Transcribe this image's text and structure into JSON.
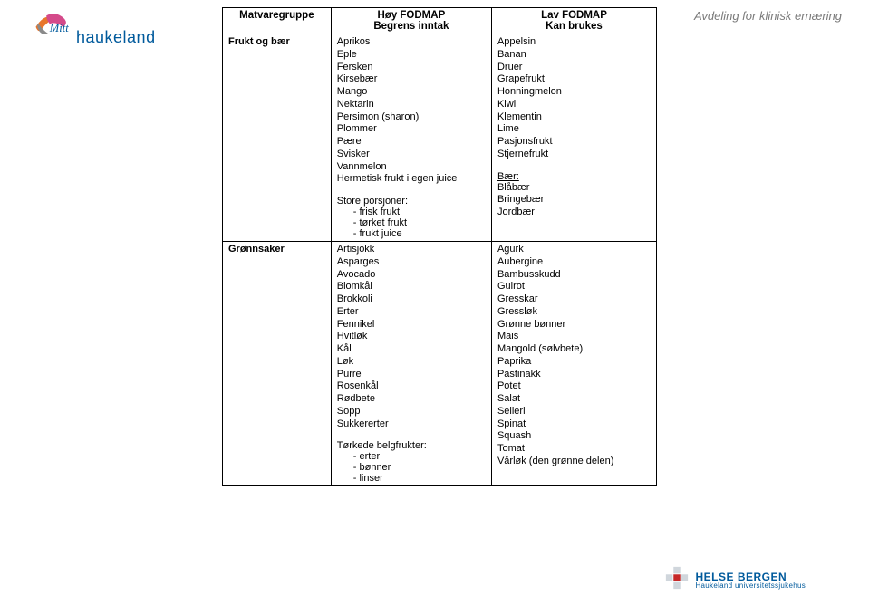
{
  "header": {
    "logo_text": "haukeland",
    "dept": "Avdeling for klinisk ernæring"
  },
  "table": {
    "headers": {
      "group": "Matvaregruppe",
      "high_l1": "Høy FODMAP",
      "high_l2": "Begrens inntak",
      "low_l1": "Lav FODMAP",
      "low_l2": "Kan brukes"
    },
    "rows": [
      {
        "group": "Frukt og bær",
        "high_plain": [
          "Aprikos",
          "Eple",
          "Fersken",
          "Kirsebær",
          "Mango",
          "Nektarin",
          "Persimon (sharon)",
          "Plommer",
          "Pære",
          "Svisker",
          "Vannmelon",
          "Hermetisk frukt i egen juice"
        ],
        "high_section_label": "Store porsjoner:",
        "high_sub": [
          "frisk frukt",
          "tørket frukt",
          "frukt juice"
        ],
        "low_plain": [
          "Appelsin",
          "Banan",
          "Druer",
          "Grapefrukt",
          "Honningmelon",
          "Kiwi",
          "Klementin",
          "Lime",
          "Pasjonsfrukt",
          "Stjernefrukt"
        ],
        "low_section_label": "Bær:",
        "low_after": [
          "Blåbær",
          "Bringebær",
          "Jordbær"
        ]
      },
      {
        "group": "Grønnsaker",
        "high_plain": [
          "Artisjokk",
          "Asparges",
          "Avocado",
          "Blomkål",
          "Brokkoli",
          "Erter",
          "Fennikel",
          "Hvitløk",
          "Kål",
          "Løk",
          "Purre",
          "Rosenkål",
          "Rødbete",
          "Sopp",
          "Sukkererter"
        ],
        "high_section_label": "Tørkede belgfrukter:",
        "high_sub": [
          "erter",
          "bønner",
          "linser"
        ],
        "low_plain": [
          "Agurk",
          "Aubergine",
          "Bambusskudd",
          "Gulrot",
          "Gresskar",
          "Gressløk",
          "Grønne bønner",
          "Mais",
          "Mangold (sølvbete)",
          "Paprika",
          "Pastinakk",
          "Potet",
          "Salat",
          "Selleri",
          "Spinat",
          "Squash",
          "Tomat",
          "Vårløk (den grønne delen)"
        ],
        "low_section_label": "",
        "low_after": []
      }
    ]
  },
  "footer": {
    "brand_l1": "HELSE BERGEN",
    "brand_l2": "Haukeland universitetssjukehus"
  },
  "colors": {
    "brand_blue": "#005a9c",
    "accent_orange": "#e8762c",
    "accent_pink": "#d44a8a",
    "text_grey": "#7a7a7a",
    "border": "#000000",
    "bg": "#ffffff"
  }
}
